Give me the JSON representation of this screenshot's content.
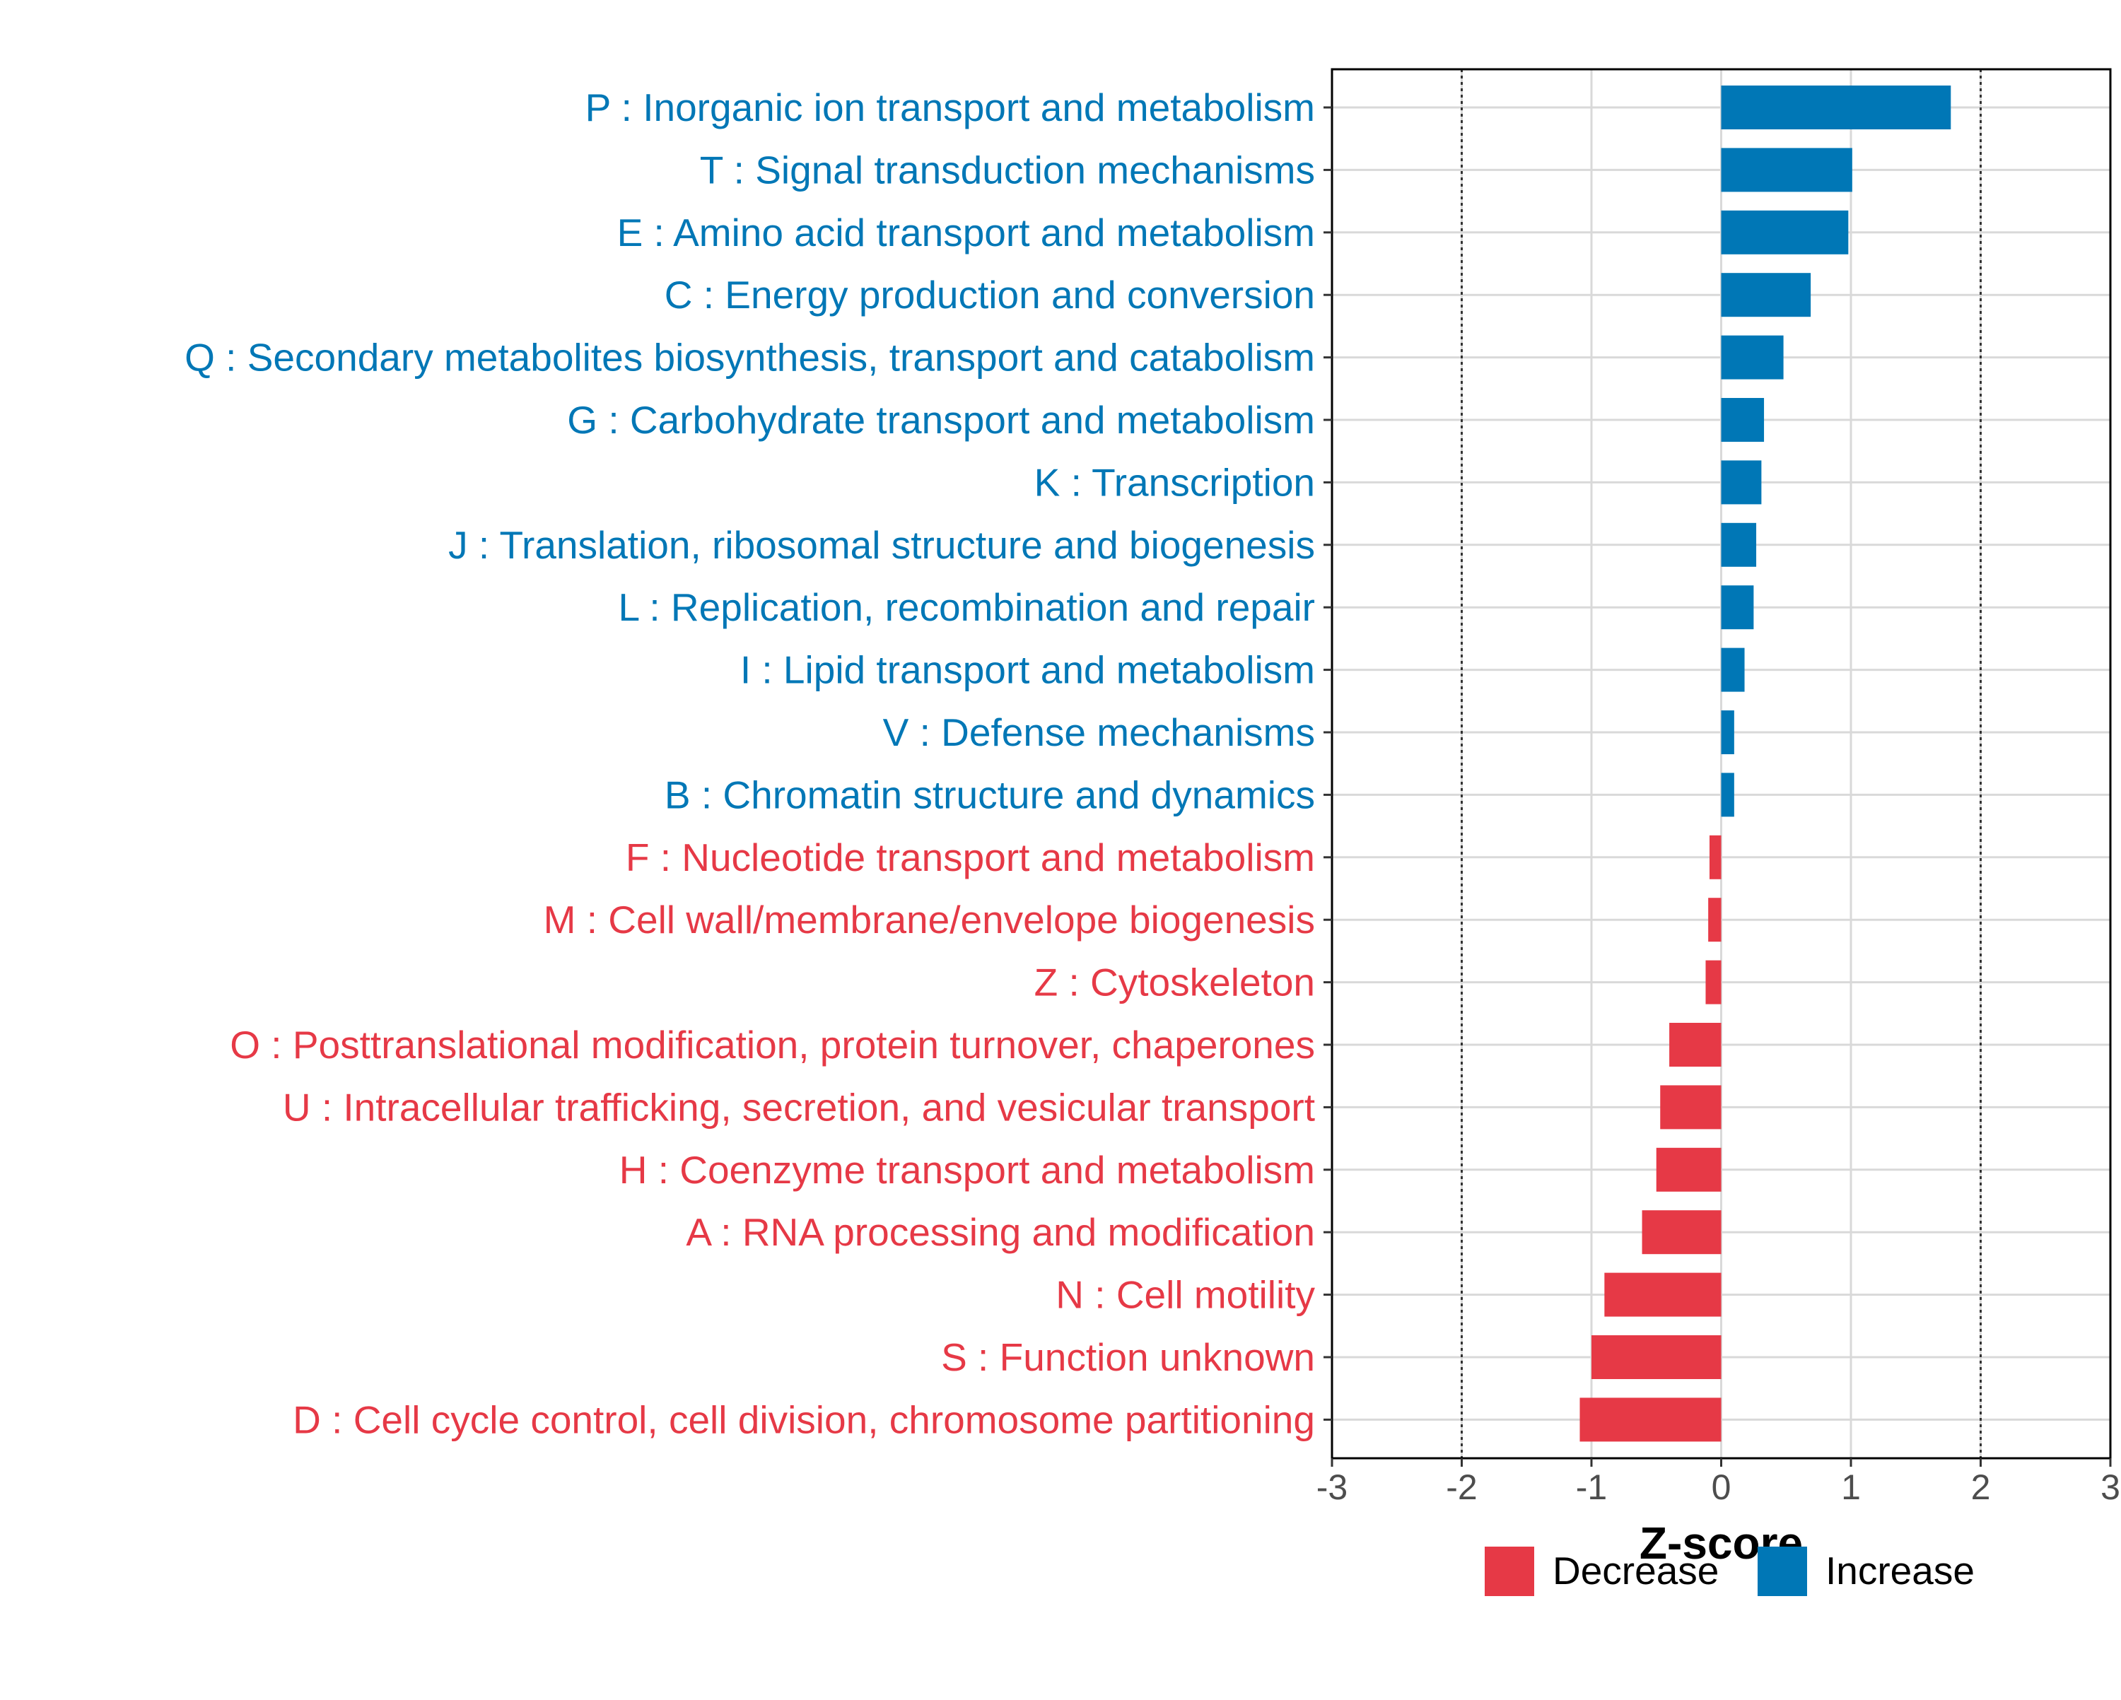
{
  "chart_data": {
    "type": "bar",
    "orientation": "horizontal",
    "title": "",
    "xlabel": "Z-score",
    "ylabel": "",
    "xlim": [
      -3,
      3
    ],
    "xticks": [
      -3,
      -2,
      -1,
      0,
      1,
      2,
      3
    ],
    "reference_lines": [
      -2,
      2
    ],
    "grid": true,
    "legend_position": "bottom",
    "categories": [
      "P : Inorganic ion transport and metabolism",
      "T : Signal transduction mechanisms",
      "E : Amino acid transport and metabolism",
      "C : Energy production and conversion",
      "Q : Secondary metabolites biosynthesis, transport and catabolism",
      "G : Carbohydrate transport and metabolism",
      "K : Transcription",
      "J : Translation, ribosomal structure and biogenesis",
      "L : Replication, recombination and repair",
      "I : Lipid transport and metabolism",
      "V : Defense mechanisms",
      "B : Chromatin structure and dynamics",
      "F : Nucleotide transport and metabolism",
      "M : Cell wall/membrane/envelope biogenesis",
      "Z : Cytoskeleton",
      "O : Posttranslational modification, protein turnover, chaperones",
      "U : Intracellular trafficking, secretion, and vesicular transport",
      "H : Coenzyme transport and metabolism",
      "A : RNA processing and modification",
      "N : Cell motility",
      "S : Function unknown",
      "D : Cell cycle control, cell division, chromosome partitioning"
    ],
    "values": [
      1.77,
      1.01,
      0.98,
      0.69,
      0.48,
      0.33,
      0.31,
      0.27,
      0.25,
      0.18,
      0.1,
      0.1,
      -0.09,
      -0.1,
      -0.12,
      -0.4,
      -0.47,
      -0.5,
      -0.61,
      -0.9,
      -1.0,
      -1.09
    ],
    "series": [
      {
        "name": "Decrease",
        "color": "#E63946"
      },
      {
        "name": "Increase",
        "color": "#0077B6"
      }
    ]
  }
}
